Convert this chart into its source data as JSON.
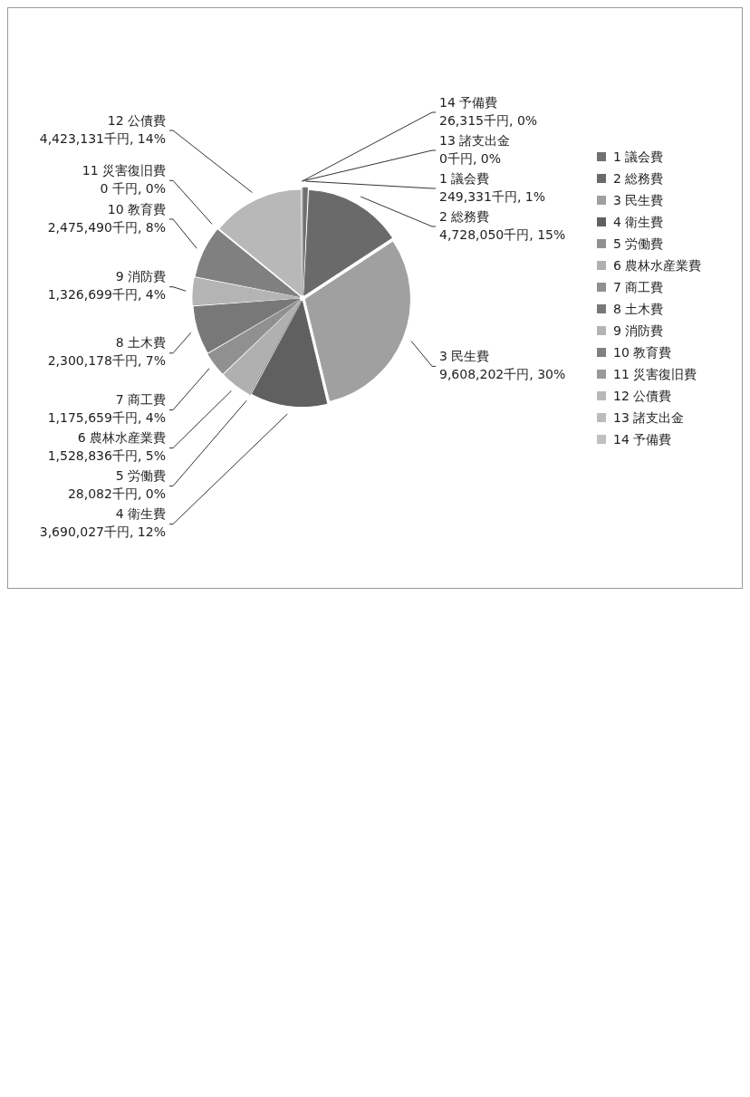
{
  "chart_data": {
    "type": "pie",
    "categories": [
      "1 議会費",
      "2 総務費",
      "3 民生費",
      "4 衛生費",
      "5 労働費",
      "6 農林水産業費",
      "7 商工費",
      "8 土木費",
      "9 消防費",
      "10 教育費",
      "11 災害復旧費",
      "12 公債費",
      "13 諸支出金",
      "14 予備費"
    ],
    "values": [
      249331,
      4728050,
      9608202,
      3690027,
      28082,
      1528836,
      1175659,
      2300178,
      1326699,
      2475490,
      0,
      4423131,
      0,
      26315
    ],
    "value_labels": [
      "249,331千円, 1%",
      "4,728,050千円, 15%",
      "9,608,202千円, 30%",
      "3,690,027千円, 12%",
      "28,082千円, 0%",
      "1,528,836千円, 5%",
      "1,175,659千円, 4%",
      "2,300,178千円, 7%",
      "1,326,699千円, 4%",
      "2,475,490千円, 8%",
      "0 千円, 0%",
      "4,423,131千円, 14%",
      "0千円, 0%",
      "26,315千円, 0%"
    ],
    "colors": [
      "#707070",
      "#6a6a6a",
      "#a0a0a0",
      "#606060",
      "#909090",
      "#b0b0b0",
      "#909090",
      "#787878",
      "#b4b4b4",
      "#808080",
      "#999999",
      "#b8b8b8",
      "#bcbcbc",
      "#c0c0c0"
    ],
    "legend": "right"
  }
}
